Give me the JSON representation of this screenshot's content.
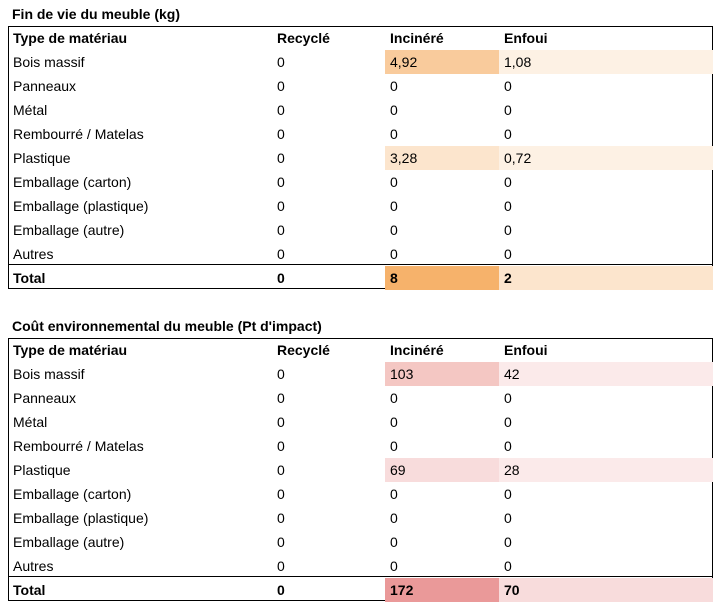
{
  "colors": {
    "orange_strong": "#f6b26b",
    "orange_medium": "#f9cb9c",
    "orange_light": "#fce5cd",
    "orange_faint": "#fdf1e4",
    "red_strong": "#ea9999",
    "red_medium": "#f4c7c3",
    "red_light": "#f8dcdc",
    "red_faint": "#fbeaea"
  },
  "tables": [
    {
      "title": "Fin de vie du meuble (kg)",
      "headers": [
        "Type de matériau",
        "Recyclé",
        "Incinéré",
        "Enfoui"
      ],
      "rows": [
        {
          "label": "Bois massif",
          "recycle": "0",
          "incinere": "4,92",
          "enfoui": "1,08",
          "shade_incinere": "orange_medium",
          "shade_enfoui": "orange_faint"
        },
        {
          "label": "Panneaux",
          "recycle": "0",
          "incinere": "0",
          "enfoui": "0"
        },
        {
          "label": "Métal",
          "recycle": "0",
          "incinere": "0",
          "enfoui": "0"
        },
        {
          "label": "Rembourré / Matelas",
          "recycle": "0",
          "incinere": "0",
          "enfoui": "0"
        },
        {
          "label": "Plastique",
          "recycle": "0",
          "incinere": "3,28",
          "enfoui": "0,72",
          "shade_incinere": "orange_light",
          "shade_enfoui": "orange_faint"
        },
        {
          "label": "Emballage (carton)",
          "recycle": "0",
          "incinere": "0",
          "enfoui": "0"
        },
        {
          "label": "Emballage (plastique)",
          "recycle": "0",
          "incinere": "0",
          "enfoui": "0"
        },
        {
          "label": "Emballage (autre)",
          "recycle": "0",
          "incinere": "0",
          "enfoui": "0"
        },
        {
          "label": "Autres",
          "recycle": "0",
          "incinere": "0",
          "enfoui": "0"
        }
      ],
      "total": {
        "label": "Total",
        "recycle": "0",
        "incinere": "8",
        "enfoui": "2",
        "shade_incinere": "orange_strong",
        "shade_enfoui": "orange_light"
      }
    },
    {
      "title": "Coût environnemental du meuble (Pt d'impact)",
      "headers": [
        "Type de matériau",
        "Recyclé",
        "Incinéré",
        "Enfoui"
      ],
      "rows": [
        {
          "label": "Bois massif",
          "recycle": "0",
          "incinere": "103",
          "enfoui": "42",
          "shade_incinere": "red_medium",
          "shade_enfoui": "red_faint"
        },
        {
          "label": "Panneaux",
          "recycle": "0",
          "incinere": "0",
          "enfoui": "0"
        },
        {
          "label": "Métal",
          "recycle": "0",
          "incinere": "0",
          "enfoui": "0"
        },
        {
          "label": "Rembourré / Matelas",
          "recycle": "0",
          "incinere": "0",
          "enfoui": "0"
        },
        {
          "label": "Plastique",
          "recycle": "0",
          "incinere": "69",
          "enfoui": "28",
          "shade_incinere": "red_light",
          "shade_enfoui": "red_faint"
        },
        {
          "label": "Emballage (carton)",
          "recycle": "0",
          "incinere": "0",
          "enfoui": "0"
        },
        {
          "label": "Emballage (plastique)",
          "recycle": "0",
          "incinere": "0",
          "enfoui": "0"
        },
        {
          "label": "Emballage (autre)",
          "recycle": "0",
          "incinere": "0",
          "enfoui": "0"
        },
        {
          "label": "Autres",
          "recycle": "0",
          "incinere": "0",
          "enfoui": "0"
        }
      ],
      "total": {
        "label": "Total",
        "recycle": "0",
        "incinere": "172",
        "enfoui": "70",
        "shade_incinere": "red_strong",
        "shade_enfoui": "red_light"
      }
    }
  ]
}
